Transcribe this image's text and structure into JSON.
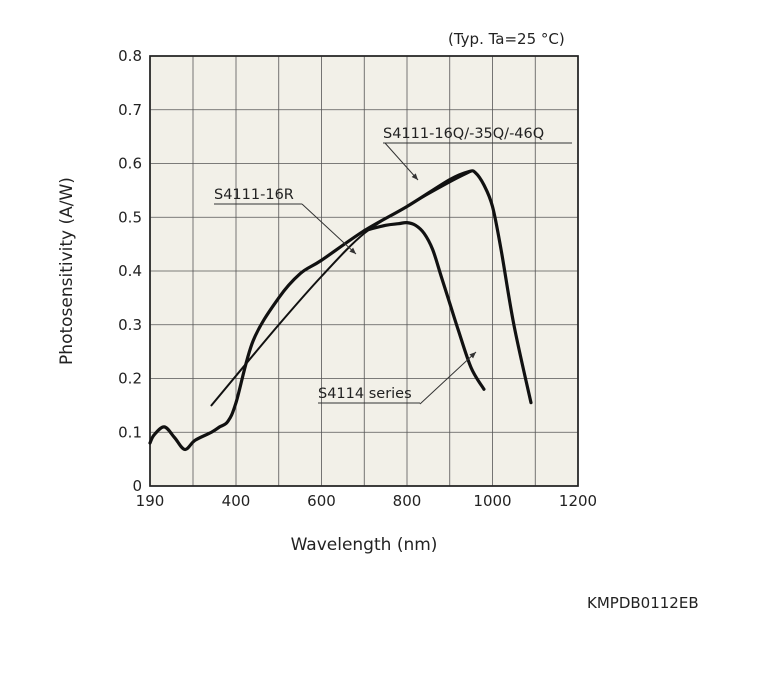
{
  "chart_data": {
    "type": "line",
    "condition": "(Typ. Ta=25 °C)",
    "xlabel": "Wavelength (nm)",
    "ylabel": "Photosensitivity (A/W)",
    "x_ticks": [
      190,
      400,
      600,
      800,
      1000,
      1200
    ],
    "y_ticks": [
      0,
      0.1,
      0.2,
      0.3,
      0.4,
      0.5,
      0.6,
      0.7,
      0.8
    ],
    "xlim": [
      190,
      1200
    ],
    "ylim": [
      0,
      0.8
    ],
    "grid": true,
    "background": "#f2f0e8",
    "series": [
      {
        "name": "S4111-16Q/-35Q/-46Q",
        "style": "thick",
        "x": [
          190,
          200,
          225,
          250,
          275,
          300,
          340,
          360,
          380,
          400,
          440,
          500,
          550,
          600,
          700,
          800,
          900,
          945,
          960,
          980,
          1000,
          1020,
          1050,
          1090
        ],
        "y": [
          0.08,
          0.095,
          0.11,
          0.09,
          0.068,
          0.085,
          0.1,
          0.11,
          0.12,
          0.155,
          0.27,
          0.35,
          0.395,
          0.42,
          0.475,
          0.52,
          0.57,
          0.585,
          0.583,
          0.56,
          0.52,
          0.44,
          0.3,
          0.155
        ]
      },
      {
        "name": "S4111-16R",
        "style": "thin",
        "x": [
          340,
          400,
          500,
          600,
          700,
          800,
          900,
          950
        ],
        "y": [
          0.15,
          0.205,
          0.3,
          0.39,
          0.47,
          0.52,
          0.565,
          0.585
        ]
      },
      {
        "name": "S4114 series",
        "style": "thick",
        "x": [
          700,
          750,
          780,
          800,
          820,
          840,
          860,
          880,
          900,
          920,
          950,
          980
        ],
        "y": [
          0.475,
          0.485,
          0.488,
          0.49,
          0.485,
          0.47,
          0.44,
          0.39,
          0.34,
          0.29,
          0.22,
          0.18
        ]
      }
    ]
  },
  "footer_code": "KMPDB0112EB"
}
